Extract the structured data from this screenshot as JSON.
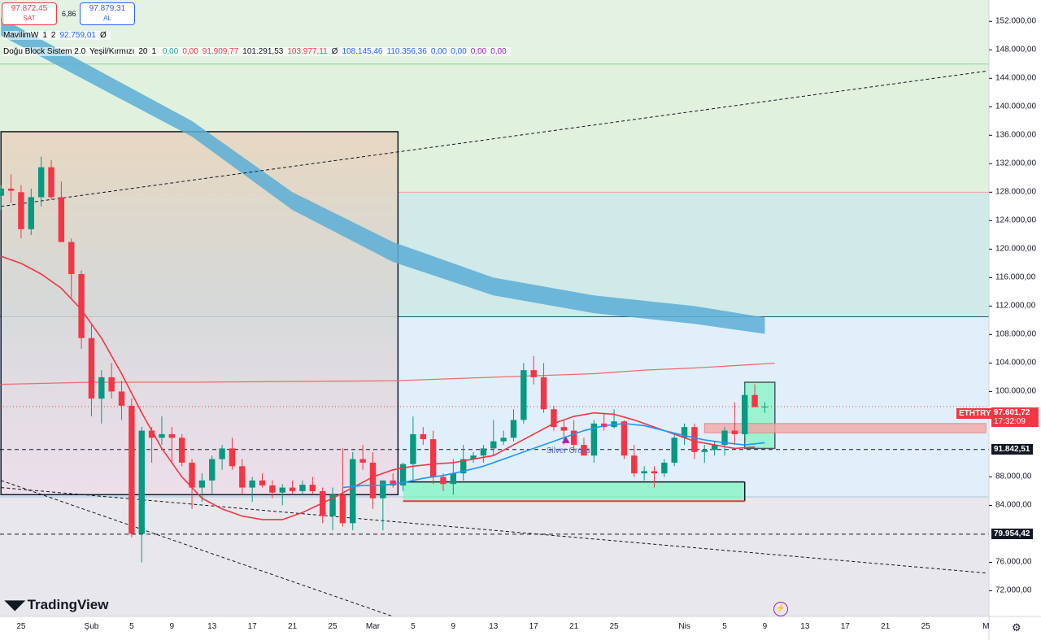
{
  "header": {
    "sell_price": "97.872,45",
    "sell_label": "SAT",
    "spread": "6,86",
    "buy_price": "97.879,31",
    "buy_label": "AL"
  },
  "indicators": {
    "row1": [
      "MavilimW",
      "1",
      "2",
      "92.759,01",
      "Ø"
    ],
    "row2_name": [
      "Doğu Block Sistem 2.0",
      "Yeşil/Kırmızı",
      "20",
      "1"
    ],
    "row2_values": [
      {
        "text": "0,00",
        "color": "#26a69a"
      },
      {
        "text": "0,00",
        "color": "#f23645"
      },
      {
        "text": "91.909,77",
        "color": "#f23645"
      },
      {
        "text": "101.291,53",
        "color": "#131722"
      },
      {
        "text": "103.977,11",
        "color": "#f23645"
      },
      {
        "text": "Ø",
        "color": "#131722"
      },
      {
        "text": "108.145,46",
        "color": "#2962ff"
      },
      {
        "text": "110.356,36",
        "color": "#2962ff"
      },
      {
        "text": "0,00",
        "color": "#2962ff"
      },
      {
        "text": "0,00",
        "color": "#2962ff"
      },
      {
        "text": "0,00",
        "color": "#9c27b0"
      },
      {
        "text": "0,00",
        "color": "#9c27b0"
      }
    ]
  },
  "brand": "TradingView",
  "chart_data": {
    "type": "candlestick",
    "symbol": "ETHTRY",
    "current_price": "97.601,72",
    "countdown": "17:32:09",
    "markers": [
      {
        "label": "91.842,51",
        "value": 91842.51
      },
      {
        "label": "79.954,42",
        "value": 79954.42
      }
    ],
    "annotation": "Silver Cross",
    "ylim": [
      68400,
      155000
    ],
    "y_ticks": [
      {
        "label": "152.000,00",
        "value": 152000
      },
      {
        "label": "148.000,00",
        "value": 148000
      },
      {
        "label": "144.000,00",
        "value": 144000
      },
      {
        "label": "140.000,00",
        "value": 140000
      },
      {
        "label": "136.000,00",
        "value": 136000
      },
      {
        "label": "132.000,00",
        "value": 132000
      },
      {
        "label": "128.000,00",
        "value": 128000
      },
      {
        "label": "124.000,00",
        "value": 124000
      },
      {
        "label": "120.000,00",
        "value": 120000
      },
      {
        "label": "116.000,00",
        "value": 116000
      },
      {
        "label": "112.000,00",
        "value": 112000
      },
      {
        "label": "108.000,00",
        "value": 108000
      },
      {
        "label": "104.000,00",
        "value": 104000
      },
      {
        "label": "100.000,00",
        "value": 100000
      },
      {
        "label": "88.000,00",
        "value": 88000
      },
      {
        "label": "84.000,00",
        "value": 84000
      },
      {
        "label": "76.000,00",
        "value": 76000
      },
      {
        "label": "72.000,00",
        "value": 72000
      }
    ],
    "x_ticks": [
      {
        "label": "25",
        "day": -7
      },
      {
        "label": "Şub",
        "day": 0
      },
      {
        "label": "5",
        "day": 4
      },
      {
        "label": "9",
        "day": 8
      },
      {
        "label": "13",
        "day": 12
      },
      {
        "label": "17",
        "day": 16
      },
      {
        "label": "21",
        "day": 20
      },
      {
        "label": "25",
        "day": 24
      },
      {
        "label": "Mar",
        "day": 28
      },
      {
        "label": "5",
        "day": 32
      },
      {
        "label": "9",
        "day": 36
      },
      {
        "label": "13",
        "day": 40
      },
      {
        "label": "17",
        "day": 44
      },
      {
        "label": "21",
        "day": 48
      },
      {
        "label": "25",
        "day": 52
      },
      {
        "label": "Nis",
        "day": 59
      },
      {
        "label": "5",
        "day": 63
      },
      {
        "label": "9",
        "day": 67
      },
      {
        "label": "13",
        "day": 71
      },
      {
        "label": "17",
        "day": 75
      },
      {
        "label": "21",
        "day": 79
      },
      {
        "label": "25",
        "day": 83
      },
      {
        "label": "M",
        "day": 89
      }
    ],
    "x_range_days": [
      -9.1,
      89.3
    ],
    "candles": [
      [
        -9,
        127500,
        129000,
        125500,
        128500
      ],
      [
        -8,
        128500,
        130500,
        126500,
        128200
      ],
      [
        -7,
        128000,
        129000,
        121500,
        122800
      ],
      [
        -6,
        122800,
        128500,
        122000,
        127300
      ],
      [
        -5,
        127300,
        133000,
        126000,
        131500
      ],
      [
        -4,
        131500,
        132500,
        127000,
        127300
      ],
      [
        -3,
        127300,
        129500,
        121000,
        121000
      ],
      [
        -2,
        121000,
        121500,
        113000,
        116500
      ],
      [
        -1,
        116500,
        117000,
        106000,
        107500
      ],
      [
        0,
        107500,
        109500,
        96500,
        99000
      ],
      [
        1,
        99000,
        103000,
        95500,
        102000
      ],
      [
        2,
        102000,
        104000,
        99000,
        100000
      ],
      [
        3,
        100000,
        101500,
        96000,
        98000
      ],
      [
        4,
        98000,
        99000,
        79500,
        80000
      ],
      [
        5,
        80000,
        95000,
        76000,
        94500
      ],
      [
        6,
        94500,
        95000,
        90000,
        93500
      ],
      [
        7,
        93500,
        96500,
        92500,
        94000
      ],
      [
        8,
        94000,
        95000,
        90000,
        93500
      ],
      [
        9,
        93500,
        94000,
        89500,
        90000
      ],
      [
        10,
        90000,
        90500,
        83500,
        86500
      ],
      [
        11,
        86500,
        88500,
        84500,
        87500
      ],
      [
        12,
        87500,
        91000,
        85500,
        90500
      ],
      [
        13,
        90500,
        92500,
        89000,
        92000
      ],
      [
        14,
        92000,
        93500,
        89000,
        89500
      ],
      [
        15,
        89500,
        90500,
        85500,
        86500
      ],
      [
        16,
        86500,
        88000,
        84500,
        87500
      ],
      [
        17,
        87500,
        88500,
        86500,
        86800
      ],
      [
        18,
        86800,
        87500,
        85000,
        85800
      ],
      [
        19,
        85800,
        87000,
        84000,
        86500
      ],
      [
        20,
        86500,
        87500,
        85500,
        86000
      ],
      [
        21,
        86000,
        87500,
        85500,
        86900
      ],
      [
        22,
        86900,
        88000,
        85500,
        86000
      ],
      [
        23,
        86000,
        86500,
        81500,
        82500
      ],
      [
        24,
        82500,
        86500,
        80500,
        85500
      ],
      [
        25,
        85500,
        92000,
        81000,
        81500
      ],
      [
        26,
        81500,
        91500,
        80500,
        90500
      ],
      [
        27,
        90500,
        92500,
        89000,
        90000
      ],
      [
        28,
        90000,
        91500,
        83500,
        85000
      ],
      [
        29,
        85000,
        87500,
        80500,
        87500
      ],
      [
        30,
        87500,
        88500,
        86500,
        86800
      ],
      [
        31,
        86800,
        90000,
        86000,
        89800
      ],
      [
        32,
        89800,
        96500,
        87500,
        94000
      ],
      [
        33,
        94000,
        95000,
        92500,
        93300
      ],
      [
        34,
        93300,
        94500,
        87000,
        88000
      ],
      [
        35,
        88000,
        88500,
        86000,
        87000
      ],
      [
        36,
        87000,
        90500,
        85500,
        88500
      ],
      [
        37,
        88500,
        92500,
        87500,
        90500
      ],
      [
        38,
        90500,
        91500,
        90000,
        91000
      ],
      [
        39,
        91000,
        92500,
        90000,
        92000
      ],
      [
        40,
        92000,
        96000,
        91000,
        93000
      ],
      [
        41,
        93000,
        94500,
        92500,
        93500
      ],
      [
        42,
        93500,
        97500,
        93000,
        96000
      ],
      [
        43,
        96000,
        104000,
        95500,
        103000
      ],
      [
        44,
        103000,
        105000,
        101000,
        102000
      ],
      [
        45,
        102000,
        104000,
        97000,
        97500
      ],
      [
        46,
        97500,
        98000,
        94500,
        95000
      ],
      [
        47,
        95000,
        96000,
        92500,
        94500
      ],
      [
        48,
        94500,
        96000,
        91500,
        92500
      ],
      [
        49,
        92500,
        93500,
        91000,
        91000
      ],
      [
        50,
        91000,
        96000,
        90000,
        95500
      ],
      [
        51,
        95500,
        97000,
        94500,
        95000
      ],
      [
        52,
        95000,
        97500,
        94800,
        95800
      ],
      [
        53,
        95800,
        96000,
        90500,
        91000
      ],
      [
        54,
        91000,
        92500,
        88000,
        88500
      ],
      [
        55,
        88500,
        89500,
        87500,
        88800
      ],
      [
        56,
        88800,
        89500,
        86500,
        88500
      ],
      [
        57,
        88500,
        90500,
        88000,
        90000
      ],
      [
        58,
        90000,
        94000,
        89500,
        93500
      ],
      [
        59,
        93500,
        95500,
        92500,
        95000
      ],
      [
        60,
        95000,
        95500,
        90500,
        91500
      ],
      [
        61,
        91500,
        92500,
        90000,
        91800
      ],
      [
        62,
        91800,
        93000,
        91000,
        92500
      ],
      [
        63,
        92500,
        95000,
        91000,
        94500
      ],
      [
        64,
        94500,
        98500,
        92500,
        94000
      ],
      [
        65,
        94000,
        101000,
        93500,
        99500
      ],
      [
        66,
        99500,
        101000,
        98000,
        97800
      ],
      [
        67,
        97800,
        98500,
        97000,
        97872
      ]
    ],
    "mavilim": [
      [
        -1,
        0
      ],
      [
        0,
        0
      ]
    ],
    "crossing": [
      36,
      88000
    ],
    "ma_red_points": [
      [
        -9,
        119000
      ],
      [
        -7,
        118000
      ],
      [
        -5,
        116500
      ],
      [
        -3,
        114500
      ],
      [
        -1,
        111500
      ],
      [
        1,
        107500
      ],
      [
        3,
        102500
      ],
      [
        5,
        97000
      ],
      [
        7,
        92000
      ],
      [
        9,
        88000
      ],
      [
        11,
        85000
      ],
      [
        13,
        83500
      ],
      [
        15,
        82500
      ],
      [
        17,
        82000
      ],
      [
        19,
        82000
      ],
      [
        21,
        83000
      ],
      [
        24,
        85000
      ],
      [
        26,
        86500
      ],
      [
        28,
        88000
      ],
      [
        30,
        89000
      ],
      [
        32,
        89500
      ],
      [
        34,
        89800
      ],
      [
        36,
        90000
      ],
      [
        38,
        90500
      ],
      [
        40,
        91000
      ],
      [
        42,
        92500
      ],
      [
        44,
        94000
      ],
      [
        46,
        95500
      ],
      [
        48,
        96500
      ],
      [
        50,
        97000
      ],
      [
        52,
        96800
      ],
      [
        54,
        96000
      ],
      [
        56,
        95000
      ],
      [
        58,
        94000
      ],
      [
        60,
        93000
      ],
      [
        62,
        92500
      ],
      [
        64,
        92000
      ],
      [
        66,
        92200
      ]
    ],
    "ma_blue_points": [
      [
        25,
        86500
      ],
      [
        27,
        86800
      ],
      [
        29,
        86800
      ],
      [
        31,
        87200
      ],
      [
        33,
        87800
      ],
      [
        35,
        88200
      ],
      [
        37,
        88800
      ],
      [
        39,
        89500
      ],
      [
        41,
        90500
      ],
      [
        43,
        91500
      ],
      [
        45,
        92500
      ],
      [
        47,
        93500
      ],
      [
        49,
        94500
      ],
      [
        51,
        95200
      ],
      [
        53,
        95500
      ],
      [
        55,
        95200
      ],
      [
        57,
        94500
      ],
      [
        59,
        93800
      ],
      [
        61,
        93200
      ],
      [
        63,
        92800
      ],
      [
        65,
        92500
      ],
      [
        67,
        92800
      ]
    ],
    "blue_band_upper": [
      [
        -9,
        152500
      ],
      [
        10,
        138000
      ],
      [
        20,
        128000
      ],
      [
        30,
        121000
      ],
      [
        40,
        116000
      ],
      [
        50,
        113500
      ],
      [
        60,
        112000
      ],
      [
        67,
        110400
      ]
    ],
    "blue_band_lower": [
      [
        -9,
        150000
      ],
      [
        10,
        135800
      ],
      [
        20,
        125500
      ],
      [
        30,
        118200
      ],
      [
        40,
        113500
      ],
      [
        50,
        111000
      ],
      [
        60,
        109500
      ],
      [
        67,
        108100
      ]
    ],
    "resistance_upper_points": [
      [
        -9,
        101000
      ],
      [
        0,
        101300
      ],
      [
        10,
        101300
      ],
      [
        20,
        101400
      ],
      [
        30,
        101500
      ],
      [
        40,
        102000
      ],
      [
        50,
        102500
      ],
      [
        55,
        103000
      ],
      [
        60,
        103300
      ],
      [
        68,
        103977
      ]
    ],
    "levels": {
      "top_zone": 146000,
      "mid_line": 128000,
      "mid_zone_bottom": 110500,
      "lower_zone": 85200
    },
    "boxes": {
      "gray_box": {
        "x0": -9,
        "x1": 30.5,
        "y0": 136500,
        "y1": 85500
      },
      "green_box": {
        "x0": 31,
        "x1": 65,
        "y0": 87300,
        "y1": 84600
      },
      "green_box2": {
        "x0": 65,
        "x1": 68,
        "y0": 101300,
        "y1": 92000
      },
      "red_box": {
        "x0": 61,
        "x1": 89,
        "y0": 95500,
        "y1": 94200
      }
    },
    "trendlines": {
      "dash_up": [
        [
          -9,
          126000
        ],
        [
          89,
          145000
        ]
      ],
      "dash_down1": [
        [
          -9,
          86500
        ],
        [
          89,
          74500
        ]
      ],
      "dash_down2": [
        [
          -9,
          87500
        ],
        [
          30,
          68400
        ]
      ]
    }
  }
}
